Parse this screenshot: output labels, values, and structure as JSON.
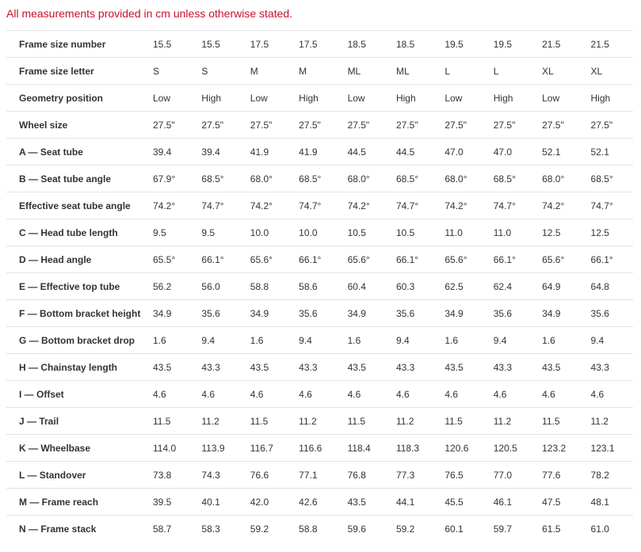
{
  "note": "All measurements provided in cm unless otherwise stated.",
  "table": {
    "rows": [
      [
        "Frame size number",
        "15.5",
        "15.5",
        "17.5",
        "17.5",
        "18.5",
        "18.5",
        "19.5",
        "19.5",
        "21.5",
        "21.5"
      ],
      [
        "Frame size letter",
        "S",
        "S",
        "M",
        "M",
        "ML",
        "ML",
        "L",
        "L",
        "XL",
        "XL"
      ],
      [
        "Geometry position",
        "Low",
        "High",
        "Low",
        "High",
        "Low",
        "High",
        "Low",
        "High",
        "Low",
        "High"
      ],
      [
        "Wheel size",
        "27.5\"",
        "27.5\"",
        "27.5\"",
        "27.5\"",
        "27.5\"",
        "27.5\"",
        "27.5\"",
        "27.5\"",
        "27.5\"",
        "27.5\""
      ],
      [
        "A — Seat tube",
        "39.4",
        "39.4",
        "41.9",
        "41.9",
        "44.5",
        "44.5",
        "47.0",
        "47.0",
        "52.1",
        "52.1"
      ],
      [
        "B — Seat tube angle",
        "67.9°",
        "68.5°",
        "68.0°",
        "68.5°",
        "68.0°",
        "68.5°",
        "68.0°",
        "68.5°",
        "68.0°",
        "68.5°"
      ],
      [
        "Effective seat tube angle",
        "74.2°",
        "74.7°",
        "74.2°",
        "74.7°",
        "74.2°",
        "74.7°",
        "74.2°",
        "74.7°",
        "74.2°",
        "74.7°"
      ],
      [
        "C — Head tube length",
        "9.5",
        "9.5",
        "10.0",
        "10.0",
        "10.5",
        "10.5",
        "11.0",
        "11.0",
        "12.5",
        "12.5"
      ],
      [
        "D — Head angle",
        "65.5°",
        "66.1°",
        "65.6°",
        "66.1°",
        "65.6°",
        "66.1°",
        "65.6°",
        "66.1°",
        "65.6°",
        "66.1°"
      ],
      [
        "E — Effective top tube",
        "56.2",
        "56.0",
        "58.8",
        "58.6",
        "60.4",
        "60.3",
        "62.5",
        "62.4",
        "64.9",
        "64.8"
      ],
      [
        "F — Bottom bracket height",
        "34.9",
        "35.6",
        "34.9",
        "35.6",
        "34.9",
        "35.6",
        "34.9",
        "35.6",
        "34.9",
        "35.6"
      ],
      [
        "G — Bottom bracket drop",
        "1.6",
        "9.4",
        "1.6",
        "9.4",
        "1.6",
        "9.4",
        "1.6",
        "9.4",
        "1.6",
        "9.4"
      ],
      [
        "H — Chainstay length",
        "43.5",
        "43.3",
        "43.5",
        "43.3",
        "43.5",
        "43.3",
        "43.5",
        "43.3",
        "43.5",
        "43.3"
      ],
      [
        "I — Offset",
        "4.6",
        "4.6",
        "4.6",
        "4.6",
        "4.6",
        "4.6",
        "4.6",
        "4.6",
        "4.6",
        "4.6"
      ],
      [
        "J — Trail",
        "11.5",
        "11.2",
        "11.5",
        "11.2",
        "11.5",
        "11.2",
        "11.5",
        "11.2",
        "11.5",
        "11.2"
      ],
      [
        "K — Wheelbase",
        "114.0",
        "113.9",
        "116.7",
        "116.6",
        "118.4",
        "118.3",
        "120.6",
        "120.5",
        "123.2",
        "123.1"
      ],
      [
        "L — Standover",
        "73.8",
        "74.3",
        "76.6",
        "77.1",
        "76.8",
        "77.3",
        "76.5",
        "77.0",
        "77.6",
        "78.2"
      ],
      [
        "M — Frame reach",
        "39.5",
        "40.1",
        "42.0",
        "42.6",
        "43.5",
        "44.1",
        "45.5",
        "46.1",
        "47.5",
        "48.1"
      ],
      [
        "N — Frame stack",
        "58.7",
        "58.3",
        "59.2",
        "58.8",
        "59.6",
        "59.2",
        "60.1",
        "59.7",
        "61.5",
        "61.0"
      ]
    ]
  }
}
